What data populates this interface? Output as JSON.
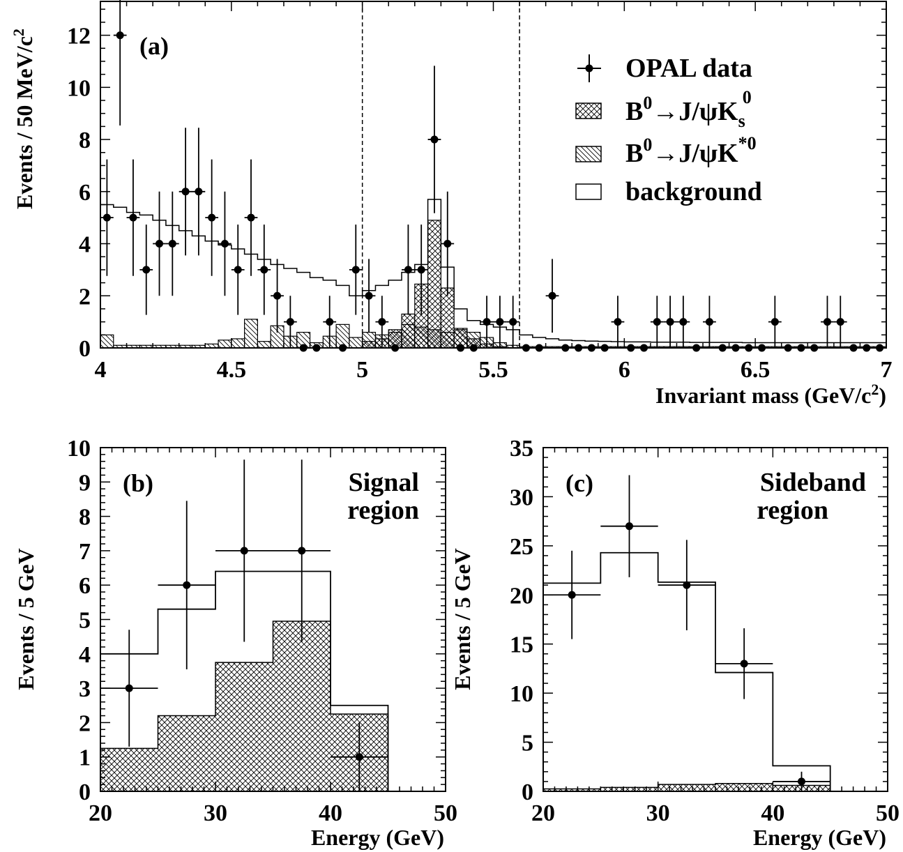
{
  "colors": {
    "ink": "#000000",
    "paper": "#ffffff"
  },
  "panels": {
    "a": {
      "tag": "(a)",
      "xlabel": "Invariant mass (GeV/c",
      "xlabel_sup": "2",
      "xlabel_tail": ")",
      "ylabel": "Events / 50 MeV/c",
      "ylabel_sup": "2"
    },
    "b": {
      "tag": "(b)",
      "region_line1": "Signal",
      "region_line2": "region",
      "xlabel": "Energy (GeV)",
      "ylabel": "Events / 5 GeV"
    },
    "c": {
      "tag": "(c)",
      "region_line1": "Sideband",
      "region_line2": "region",
      "xlabel": "Energy (GeV)",
      "ylabel": "Events / 5 GeV"
    }
  },
  "legend": {
    "data": "OPAL data",
    "ks_prefix": "B",
    "ks_sup1": "0",
    "ks_mid": "→J/ψK",
    "ks_sub": "s",
    "ks_sup2": "0",
    "kstar_prefix": "B",
    "kstar_sup1": "0",
    "kstar_mid": "→J/ψK",
    "kstar_sup2": "*0",
    "background": "background"
  },
  "chart_data": [
    {
      "panel": "a",
      "type": "bar",
      "xlabel": "Invariant mass (GeV/c2)",
      "ylabel": "Events / 50 MeV/c2",
      "xlim": [
        4,
        7
      ],
      "ylim": [
        0,
        13.3
      ],
      "xticks": [
        "4",
        "4.5",
        "5",
        "5.5",
        "6",
        "6.5",
        "7"
      ],
      "xtick_values": [
        4,
        4.5,
        5,
        5.5,
        6,
        6.5,
        7
      ],
      "yticks": [
        "0",
        "2",
        "4",
        "6",
        "8",
        "10",
        "12"
      ],
      "ytick_values": [
        0,
        2,
        4,
        6,
        8,
        10,
        12
      ],
      "vertical_dashed_lines": [
        5.0,
        5.6
      ],
      "bin_width": 0.05,
      "data_points": {
        "name": "OPAL data",
        "x": [
          4.025,
          4.075,
          4.125,
          4.175,
          4.225,
          4.275,
          4.325,
          4.375,
          4.425,
          4.475,
          4.525,
          4.575,
          4.625,
          4.675,
          4.725,
          4.775,
          4.825,
          4.875,
          4.925,
          4.975,
          5.025,
          5.075,
          5.125,
          5.175,
          5.225,
          5.275,
          5.325,
          5.375,
          5.425,
          5.475,
          5.525,
          5.575,
          5.625,
          5.675,
          5.725,
          5.775,
          5.825,
          5.875,
          5.925,
          5.975,
          6.025,
          6.075,
          6.125,
          6.175,
          6.225,
          6.275,
          6.325,
          6.375,
          6.425,
          6.475,
          6.525,
          6.575,
          6.625,
          6.675,
          6.725,
          6.775,
          6.825,
          6.875,
          6.925,
          6.975
        ],
        "y": [
          5,
          12,
          5,
          3,
          4,
          4,
          6,
          6,
          5,
          4,
          3,
          5,
          3,
          2,
          1,
          0,
          0,
          1,
          0,
          3,
          2,
          1,
          0,
          3,
          3,
          8,
          4,
          0,
          0,
          1,
          1,
          1,
          0,
          0,
          2,
          0,
          0,
          0,
          0,
          1,
          0,
          0,
          1,
          1,
          1,
          0,
          1,
          0,
          0,
          0,
          0,
          1,
          0,
          0,
          0,
          1,
          1,
          0,
          0,
          0
        ]
      },
      "series": [
        {
          "name": "background",
          "style": "open",
          "values": [
            5.5,
            5.4,
            5.2,
            5.1,
            4.9,
            4.7,
            4.5,
            4.3,
            4.1,
            3.95,
            3.8,
            3.6,
            3.4,
            3.2,
            3.05,
            2.9,
            2.7,
            2.6,
            2.4,
            2.0,
            2.2,
            2.4,
            2.6,
            2.9,
            3.2,
            5.7,
            3.1,
            1.5,
            1.05,
            0.9,
            0.8,
            0.7,
            0.5,
            0.4,
            0.35,
            0.3,
            0.28,
            0.26,
            0.25,
            0.24,
            0.23,
            0.23,
            0.22,
            0.22,
            0.22,
            0.21,
            0.21,
            0.21,
            0.21,
            0.2,
            0.2,
            0.2,
            0.2,
            0.2,
            0.2,
            0.2,
            0.2,
            0.2,
            0.2,
            0.2
          ]
        },
        {
          "name": "B0→J/ψK*0",
          "style": "diagonal-hatch",
          "values": [
            0.5,
            0.1,
            0.1,
            0.1,
            0.1,
            0.1,
            0.1,
            0.1,
            0.15,
            0.3,
            0.35,
            1.1,
            0.25,
            0.85,
            0.45,
            0.6,
            0.2,
            0.45,
            0.9,
            0.4,
            0.6,
            0.5,
            0.6,
            0.9,
            0.8,
            0.7,
            0.6,
            0.7,
            0.6,
            0.4,
            0.2,
            0.1,
            0.05,
            0.05,
            0.05,
            0.05,
            0.05,
            0.05,
            0.05,
            0.05,
            0.05,
            0.05,
            0.05,
            0.05,
            0.05,
            0.05,
            0.05,
            0.05,
            0.05,
            0.05,
            0.05,
            0.05,
            0.05,
            0.05,
            0.05,
            0.05,
            0.05,
            0.05,
            0.05,
            0.05
          ]
        },
        {
          "name": "B0→J/ψKs0",
          "style": "cross-hatch",
          "values": [
            0,
            0,
            0,
            0,
            0,
            0,
            0,
            0,
            0,
            0,
            0,
            0,
            0,
            0,
            0,
            0,
            0,
            0,
            0,
            0,
            0.25,
            0.35,
            0.7,
            1.3,
            2.45,
            4.9,
            2.3,
            0.75,
            0.35,
            0.15,
            0.05,
            0,
            0,
            0,
            0,
            0,
            0,
            0,
            0,
            0,
            0,
            0,
            0,
            0,
            0,
            0,
            0,
            0,
            0,
            0,
            0,
            0,
            0,
            0,
            0,
            0,
            0,
            0,
            0,
            0
          ]
        }
      ]
    },
    {
      "panel": "b",
      "type": "bar",
      "xlabel": "Energy (GeV)",
      "ylabel": "Events / 5 GeV",
      "xlim": [
        20,
        50
      ],
      "ylim": [
        0,
        10
      ],
      "xticks": [
        "20",
        "30",
        "40",
        "50"
      ],
      "xtick_values": [
        20,
        30,
        40,
        50
      ],
      "yticks": [
        "0",
        "1",
        "2",
        "3",
        "4",
        "5",
        "6",
        "7",
        "8",
        "9",
        "10"
      ],
      "ytick_values": [
        0,
        1,
        2,
        3,
        4,
        5,
        6,
        7,
        8,
        9,
        10
      ],
      "bin_edges": [
        20,
        25,
        30,
        35,
        40,
        45
      ],
      "data_points": {
        "name": "OPAL data",
        "x": [
          22.5,
          27.5,
          32.5,
          37.5,
          42.5
        ],
        "y": [
          3,
          6,
          7,
          7,
          1
        ],
        "err_up": [
          1.7,
          2.45,
          2.65,
          2.65,
          1.0
        ],
        "err_dn": [
          1.7,
          2.45,
          2.65,
          2.65,
          1.0
        ]
      },
      "series": [
        {
          "name": "background",
          "style": "open",
          "values": [
            4.0,
            5.3,
            6.4,
            6.4,
            2.5
          ]
        },
        {
          "name": "B0→J/ψKs0",
          "style": "cross-hatch",
          "values": [
            1.25,
            2.2,
            3.75,
            4.95,
            2.25
          ]
        }
      ]
    },
    {
      "panel": "c",
      "type": "bar",
      "xlabel": "Energy (GeV)",
      "ylabel": "Events / 5 GeV",
      "xlim": [
        20,
        50
      ],
      "ylim": [
        0,
        35
      ],
      "xticks": [
        "20",
        "30",
        "40",
        "50"
      ],
      "xtick_values": [
        20,
        30,
        40,
        50
      ],
      "yticks": [
        "0",
        "5",
        "10",
        "15",
        "20",
        "25",
        "30",
        "35"
      ],
      "ytick_values": [
        0,
        5,
        10,
        15,
        20,
        25,
        30,
        35
      ],
      "bin_edges": [
        20,
        25,
        30,
        35,
        40,
        45
      ],
      "data_points": {
        "name": "OPAL data",
        "x": [
          22.5,
          27.5,
          32.5,
          37.5,
          42.5
        ],
        "y": [
          20,
          27,
          21,
          13,
          1
        ],
        "err_up": [
          4.5,
          5.2,
          4.6,
          3.6,
          1.0
        ],
        "err_dn": [
          4.5,
          5.2,
          4.6,
          3.6,
          1.0
        ]
      },
      "series": [
        {
          "name": "background",
          "style": "open",
          "values": [
            21.2,
            24.3,
            21.3,
            12.1,
            2.6
          ]
        },
        {
          "name": "B0→J/ψKs0",
          "style": "cross-hatch",
          "values": [
            0.25,
            0.4,
            0.7,
            0.8,
            0.6
          ]
        }
      ]
    }
  ]
}
